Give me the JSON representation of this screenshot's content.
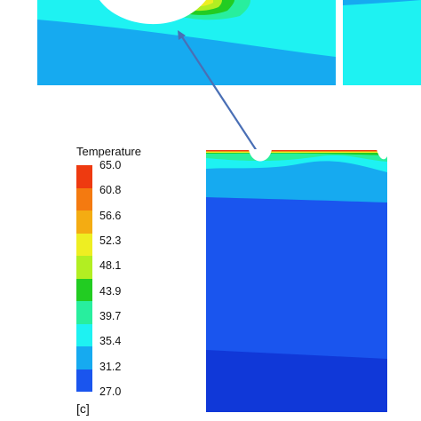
{
  "legend": {
    "title": "Temperature",
    "unit": "[c]",
    "levels": [
      "65.0",
      "60.8",
      "56.6",
      "52.3",
      "48.1",
      "43.9",
      "39.7",
      "35.4",
      "31.2",
      "27.0"
    ],
    "band_colors": [
      "#ee3a10",
      "#f47a10",
      "#f4ac12",
      "#eeee22",
      "#b2ee22",
      "#22cc22",
      "#28ee9e",
      "#1ef2f2",
      "#16aaf0",
      "#1a55ee"
    ]
  },
  "colors": {
    "deep_blue": "#1a55ee",
    "mid_blue": "#16aaf0",
    "cyan": "#1ef2f2",
    "aqua_green": "#28ee9e",
    "green": "#22cc22",
    "yellow_green": "#b2ee22",
    "yellow": "#eeee22",
    "orange": "#f4ac12",
    "red": "#ee3a10",
    "arrow": "#4a6fb5"
  }
}
